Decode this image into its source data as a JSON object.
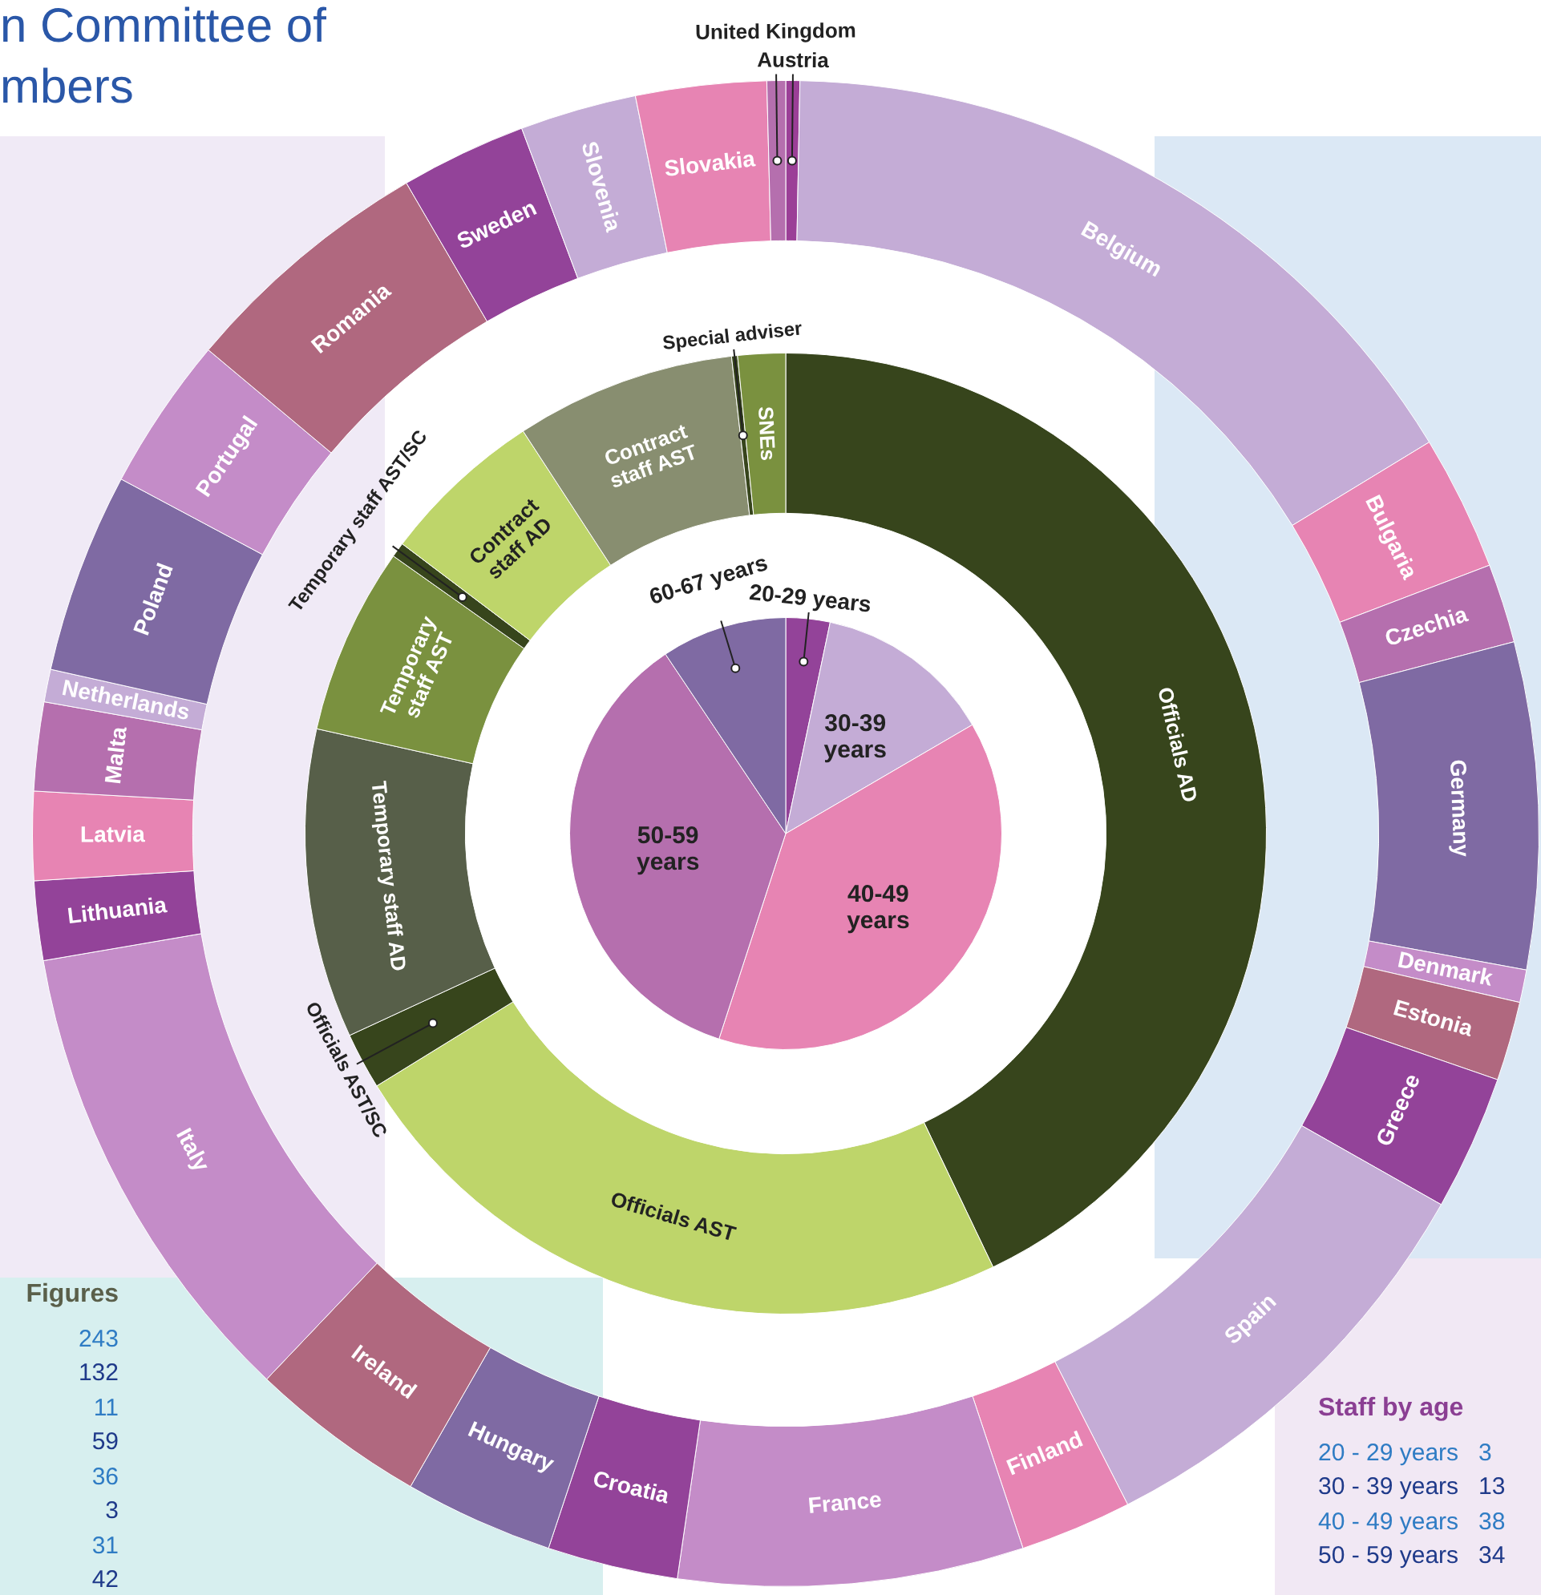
{
  "chart_data": [
    {
      "type": "donut",
      "title": "n Committee of\nmbers",
      "categories": [
        "Austria",
        "Belgium",
        "Bulgaria",
        "Czechia",
        "Germany",
        "Denmark",
        "Estonia",
        "Greece",
        "Spain",
        "Finland",
        "France",
        "Croatia",
        "Hungary",
        "Ireland",
        "Italy",
        "Lithuania",
        "Latvia",
        "Malta",
        "Netherlands",
        "Poland",
        "Portugal",
        "Romania",
        "Sweden",
        "Slovenia",
        "Slovakia",
        "United Kingdom"
      ],
      "values": [
        0.3,
        16.0,
        2.9,
        1.7,
        7.0,
        0.7,
        1.7,
        2.9,
        9.3,
        2.4,
        7.4,
        2.8,
        3.2,
        3.8,
        10.2,
        1.7,
        1.9,
        1.9,
        0.7,
        4.3,
        3.3,
        5.5,
        2.7,
        2.5,
        2.8,
        0.4
      ],
      "colors": [
        "#9b3f97",
        "#c4acd6",
        "#e784b3",
        "#b56fae",
        "#7f6aa3",
        "#c48cc8",
        "#b0687f",
        "#934399",
        "#c4acd6",
        "#e784b3",
        "#c48cc8",
        "#934399",
        "#7f6aa3",
        "#b0687f",
        "#c48cc8",
        "#934399",
        "#e784b3",
        "#b56fae",
        "#c4acd6",
        "#7f6aa3",
        "#c48cc8",
        "#b0687f",
        "#934399",
        "#c4acd6",
        "#e784b3",
        "#b56fae"
      ]
    },
    {
      "type": "donut",
      "categories": [
        "Officials AD",
        "Officials AST",
        "Officials AST/SC",
        "Temporary staff AD",
        "Temporary staff AST",
        "Temporary staff AST/SC",
        "Contract staff AD",
        "Contract staff AST",
        "Special adviser",
        "SNEs"
      ],
      "values": [
        42.9,
        23.3,
        1.9,
        10.4,
        6.3,
        0.5,
        5.5,
        7.4,
        0.2,
        1.6
      ],
      "colors": [
        "#37451c",
        "#bed56a",
        "#37451c",
        "#575f49",
        "#7a913f",
        "#37451c",
        "#bed56a",
        "#888e70",
        "#37451c",
        "#7a913f"
      ],
      "annotations": [
        "Figures",
        "243",
        "132",
        "11",
        "59",
        "36",
        "3",
        "31",
        "42"
      ]
    },
    {
      "type": "pie",
      "categories": [
        "20-29 years",
        "30-39 years",
        "40-49 years",
        "50-59 years",
        "60-67 years"
      ],
      "values": [
        3.3,
        13.3,
        38.4,
        35.6,
        9.4
      ],
      "colors": [
        "#934399",
        "#c4acd6",
        "#e784b3",
        "#b56fae",
        "#7f6aa3"
      ],
      "annotations": [
        "Staff by age",
        "20 - 29 years   3",
        "30 - 39 years   13",
        "40 - 49 years   38",
        "50 - 59 years   34"
      ]
    }
  ]
}
